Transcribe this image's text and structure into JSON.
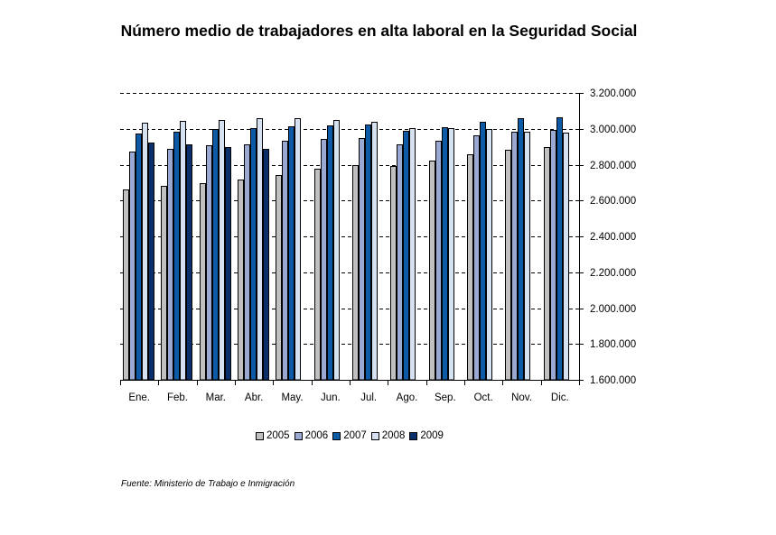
{
  "title": "Número medio de trabajadores en alta laboral en la Seguridad Social",
  "source": "Fuente: Ministerio de Trabajo e Inmigración",
  "colors": {
    "2005": "#c0c0c0",
    "2006": "#9aa9d1",
    "2007": "#0d5aa7",
    "2008": "#d6e2f2",
    "2009": "#0a2f6b"
  },
  "chart_data": {
    "type": "bar",
    "title": "Número medio de trabajadores en alta laboral en la Seguridad Social",
    "xlabel": "",
    "ylabel": "",
    "categories": [
      "Ene.",
      "Feb.",
      "Mar.",
      "Abr.",
      "May.",
      "Jun.",
      "Jul.",
      "Ago.",
      "Sep.",
      "Oct.",
      "Nov.",
      "Dic."
    ],
    "ylim": [
      1600000,
      3200000
    ],
    "yticks": [
      1600000,
      1800000,
      2000000,
      2200000,
      2400000,
      2600000,
      2800000,
      3000000,
      3200000
    ],
    "ytick_labels": [
      "1.600.000",
      "1.800.000",
      "2.000.000",
      "2.200.000",
      "2.400.000",
      "2.600.000",
      "2.800.000",
      "3.000.000",
      "3.200.000"
    ],
    "grid": "horizontal dashed",
    "legend_position": "bottom",
    "series": [
      {
        "name": "2005",
        "values": [
          2660000,
          2680000,
          2695000,
          2715000,
          2740000,
          2775000,
          2800000,
          2790000,
          2825000,
          2860000,
          2885000,
          2900000
        ]
      },
      {
        "name": "2006",
        "values": [
          2875000,
          2890000,
          2910000,
          2915000,
          2935000,
          2945000,
          2950000,
          2915000,
          2935000,
          2965000,
          2985000,
          2995000
        ]
      },
      {
        "name": "2007",
        "values": [
          2975000,
          2985000,
          3000000,
          3005000,
          3015000,
          3020000,
          3025000,
          2990000,
          3010000,
          3040000,
          3060000,
          3065000
        ]
      },
      {
        "name": "2008",
        "values": [
          3035000,
          3045000,
          3050000,
          3060000,
          3060000,
          3050000,
          3040000,
          3005000,
          3005000,
          3000000,
          2985000,
          2980000
        ]
      },
      {
        "name": "2009",
        "values": [
          2925000,
          2915000,
          2900000,
          2890000,
          null,
          null,
          null,
          null,
          null,
          null,
          null,
          null
        ]
      }
    ]
  }
}
